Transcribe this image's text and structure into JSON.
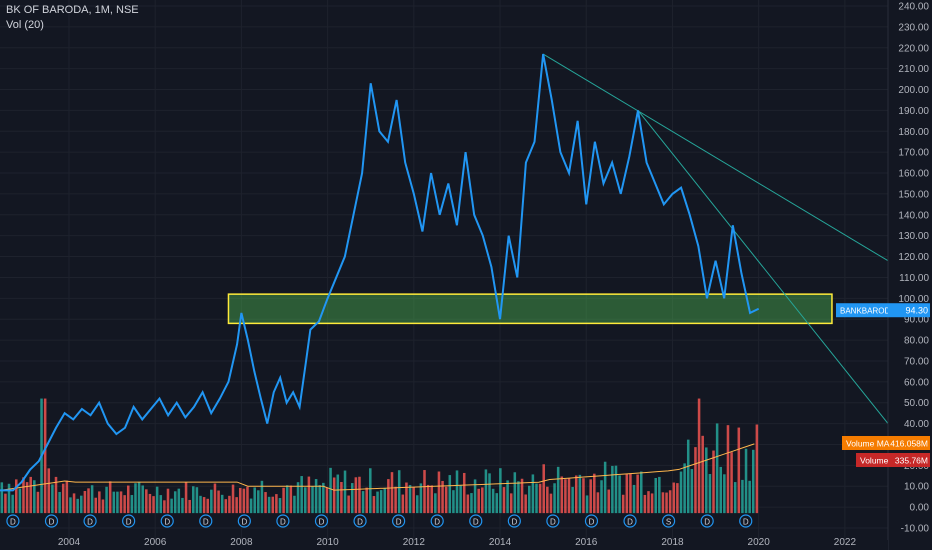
{
  "legend": {
    "symbol": "BK OF BARODA, 1M, NSE",
    "volume": "Vol (20)"
  },
  "chart_data": {
    "type": "line",
    "title": "BK OF BARODA, 1M, NSE",
    "ylim": [
      -10,
      240
    ],
    "y_ticks": [
      "240.00",
      "230.00",
      "220.00",
      "210.00",
      "200.00",
      "190.00",
      "180.00",
      "170.00",
      "160.00",
      "150.00",
      "140.00",
      "130.00",
      "120.00",
      "110.00",
      "100.00",
      "90.00",
      "80.00",
      "70.00",
      "60.00",
      "50.00",
      "40.00",
      "30.00",
      "20.00",
      "10.00",
      "0.00",
      "-10.00"
    ],
    "x_ticks": [
      "2004",
      "2006",
      "2008",
      "2010",
      "2012",
      "2014",
      "2016",
      "2018",
      "2020",
      "2022"
    ],
    "xlim": [
      2002.4,
      2023.0
    ],
    "price_series": {
      "name": "BANKBARODA",
      "color": "#2196f3",
      "points": [
        [
          2002.4,
          8
        ],
        [
          2002.7,
          8
        ],
        [
          2002.9,
          12
        ],
        [
          2003.1,
          18
        ],
        [
          2003.3,
          22
        ],
        [
          2003.5,
          30
        ],
        [
          2003.7,
          38
        ],
        [
          2003.9,
          45
        ],
        [
          2004.1,
          42
        ],
        [
          2004.3,
          47
        ],
        [
          2004.5,
          44
        ],
        [
          2004.7,
          50
        ],
        [
          2004.9,
          40
        ],
        [
          2005.1,
          35
        ],
        [
          2005.3,
          38
        ],
        [
          2005.5,
          48
        ],
        [
          2005.7,
          42
        ],
        [
          2005.9,
          47
        ],
        [
          2006.1,
          52
        ],
        [
          2006.3,
          44
        ],
        [
          2006.5,
          50
        ],
        [
          2006.7,
          43
        ],
        [
          2006.9,
          48
        ],
        [
          2007.1,
          55
        ],
        [
          2007.3,
          45
        ],
        [
          2007.5,
          52
        ],
        [
          2007.7,
          60
        ],
        [
          2007.9,
          78
        ],
        [
          2008.0,
          93
        ],
        [
          2008.15,
          80
        ],
        [
          2008.3,
          65
        ],
        [
          2008.45,
          52
        ],
        [
          2008.6,
          40
        ],
        [
          2008.75,
          55
        ],
        [
          2008.9,
          62
        ],
        [
          2009.05,
          50
        ],
        [
          2009.2,
          55
        ],
        [
          2009.35,
          48
        ],
        [
          2009.5,
          70
        ],
        [
          2009.6,
          85
        ],
        [
          2009.8,
          89
        ],
        [
          2010.0,
          100
        ],
        [
          2010.2,
          110
        ],
        [
          2010.4,
          120
        ],
        [
          2010.6,
          140
        ],
        [
          2010.8,
          160
        ],
        [
          2011.0,
          203
        ],
        [
          2011.2,
          180
        ],
        [
          2011.4,
          175
        ],
        [
          2011.6,
          195
        ],
        [
          2011.8,
          165
        ],
        [
          2012.0,
          150
        ],
        [
          2012.2,
          132
        ],
        [
          2012.4,
          160
        ],
        [
          2012.6,
          140
        ],
        [
          2012.8,
          155
        ],
        [
          2013.0,
          135
        ],
        [
          2013.2,
          170
        ],
        [
          2013.4,
          140
        ],
        [
          2013.6,
          130
        ],
        [
          2013.8,
          115
        ],
        [
          2014.0,
          90
        ],
        [
          2014.2,
          130
        ],
        [
          2014.4,
          110
        ],
        [
          2014.6,
          165
        ],
        [
          2014.8,
          175
        ],
        [
          2015.0,
          217
        ],
        [
          2015.2,
          195
        ],
        [
          2015.4,
          170
        ],
        [
          2015.6,
          160
        ],
        [
          2015.8,
          185
        ],
        [
          2016.0,
          145
        ],
        [
          2016.2,
          175
        ],
        [
          2016.4,
          155
        ],
        [
          2016.6,
          165
        ],
        [
          2016.8,
          150
        ],
        [
          2017.0,
          168
        ],
        [
          2017.2,
          190
        ],
        [
          2017.4,
          165
        ],
        [
          2017.6,
          155
        ],
        [
          2017.8,
          145
        ],
        [
          2018.0,
          150
        ],
        [
          2018.2,
          153
        ],
        [
          2018.4,
          140
        ],
        [
          2018.6,
          125
        ],
        [
          2018.8,
          100
        ],
        [
          2019.0,
          118
        ],
        [
          2019.2,
          100
        ],
        [
          2019.4,
          135
        ],
        [
          2019.6,
          112
        ],
        [
          2019.8,
          93
        ],
        [
          2020.0,
          95
        ]
      ],
      "last_value_label": "94.30"
    },
    "volume_series": {
      "name": "Volume",
      "ma_label": "Volume  MA",
      "ma_value": "416.058M",
      "last_label": "Volume",
      "last_value": "335.76M",
      "up_color": "#26a69a",
      "down_color": "#ef5350"
    },
    "annotations": {
      "support_zone": {
        "y_low": 88,
        "y_high": 102,
        "x_start": 2007.7,
        "x_end": 2021.7,
        "color": "#4caf50"
      },
      "trendlines": [
        {
          "from": [
            2015.0,
            217
          ],
          "to": [
            2023.0,
            118
          ]
        },
        {
          "from": [
            2017.2,
            190
          ],
          "to": [
            2023.0,
            40
          ]
        }
      ],
      "dividend_markers": [
        "D",
        "D",
        "D",
        "D",
        "D",
        "D",
        "D",
        "D",
        "D",
        "D",
        "D",
        "D",
        "D",
        "D",
        "D",
        "D",
        "D",
        "S",
        "D",
        "D"
      ]
    }
  }
}
